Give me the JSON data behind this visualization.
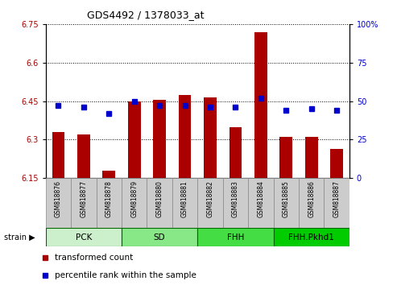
{
  "title": "GDS4492 / 1378033_at",
  "samples": [
    "GSM818876",
    "GSM818877",
    "GSM818878",
    "GSM818879",
    "GSM818880",
    "GSM818881",
    "GSM818882",
    "GSM818883",
    "GSM818884",
    "GSM818885",
    "GSM818886",
    "GSM818887"
  ],
  "red_values": [
    6.33,
    6.32,
    6.18,
    6.45,
    6.455,
    6.475,
    6.465,
    6.35,
    6.72,
    6.31,
    6.31,
    6.265
  ],
  "blue_values_pct": [
    47,
    46,
    42,
    50,
    47,
    47,
    46,
    46,
    52,
    44,
    45,
    44
  ],
  "ylim_left": [
    6.15,
    6.75
  ],
  "ylim_right": [
    0,
    100
  ],
  "yticks_left": [
    6.15,
    6.3,
    6.45,
    6.6,
    6.75
  ],
  "yticks_left_labels": [
    "6.15",
    "6.3",
    "6.45",
    "6.6",
    "6.75"
  ],
  "yticks_right": [
    0,
    25,
    50,
    75,
    100
  ],
  "yticks_right_labels": [
    "0",
    "25",
    "50",
    "75",
    "100%"
  ],
  "groups": [
    {
      "label": "PCK",
      "start": 0,
      "end": 3,
      "color": "#ccf0cc"
    },
    {
      "label": "SD",
      "start": 3,
      "end": 6,
      "color": "#88e888"
    },
    {
      "label": "FHH",
      "start": 6,
      "end": 9,
      "color": "#44dd44"
    },
    {
      "label": "FHH.Pkhd1",
      "start": 9,
      "end": 12,
      "color": "#00cc00"
    }
  ],
  "red_color": "#aa0000",
  "blue_color": "#0000cc",
  "bar_bottom": 6.15,
  "bar_width": 0.5,
  "sample_cell_color": "#cccccc",
  "sample_cell_edge": "#888888",
  "group_edge_color": "#006600"
}
